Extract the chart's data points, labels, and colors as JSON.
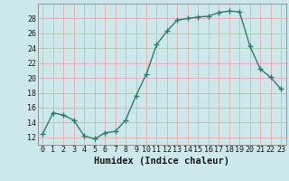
{
  "x": [
    0,
    1,
    2,
    3,
    4,
    5,
    6,
    7,
    8,
    9,
    10,
    11,
    12,
    13,
    14,
    15,
    16,
    17,
    18,
    19,
    20,
    21,
    22,
    23
  ],
  "y": [
    12.5,
    15.3,
    15.0,
    14.3,
    12.2,
    11.8,
    12.6,
    12.8,
    14.3,
    17.6,
    20.5,
    24.5,
    26.3,
    27.8,
    28.0,
    28.2,
    28.3,
    28.8,
    29.0,
    28.9,
    24.3,
    21.2,
    20.1,
    18.5
  ],
  "xlabel": "Humidex (Indice chaleur)",
  "xlim": [
    -0.5,
    23.5
  ],
  "ylim": [
    11,
    30
  ],
  "yticks": [
    12,
    14,
    16,
    18,
    20,
    22,
    24,
    26,
    28
  ],
  "xtick_labels": [
    "0",
    "1",
    "2",
    "3",
    "4",
    "5",
    "6",
    "7",
    "8",
    "9",
    "10",
    "11",
    "12",
    "13",
    "14",
    "15",
    "16",
    "17",
    "18",
    "19",
    "20",
    "21",
    "22",
    "23"
  ],
  "line_color": "#2e7d6e",
  "bg_color": "#cce8ea",
  "grid_color": "#e8b4b0",
  "marker": "+",
  "marker_size": 4.0,
  "linewidth": 1.0,
  "xlabel_fontsize": 7.5,
  "tick_fontsize": 6.0,
  "spine_color": "#888888"
}
